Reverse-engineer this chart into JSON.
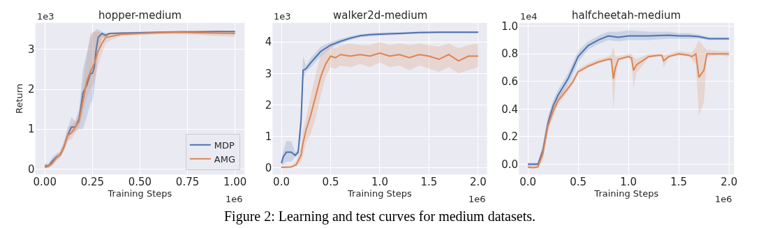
{
  "chart_data": [
    {
      "type": "line",
      "title": "hopper-medium",
      "xlabel": "Training Steps",
      "ylabel": "Return",
      "grid": true,
      "legend": "bottom right",
      "xlim": [
        -0.05,
        1.05
      ],
      "ylim": [
        -0.14,
        3.67
      ],
      "xticks": [
        {
          "value": 0,
          "label": "0.00"
        },
        0.25,
        {
          "value": 0.5,
          "label": "0.50"
        },
        0.75,
        {
          "value": 1,
          "label": "1.00"
        }
      ],
      "yticks": [
        0,
        1,
        2,
        3
      ],
      "annotations": [
        "1e3",
        "1e6",
        "Figure 2: Learning and test curves for medium datasets."
      ],
      "series": [
        {
          "name": "MDP",
          "color": "#4c72b0",
          "x": [
            0,
            0.02,
            0.04,
            0.06,
            0.08,
            0.1,
            0.12,
            0.14,
            0.16,
            0.18,
            0.2,
            0.22,
            0.24,
            0.25,
            0.26,
            0.27,
            0.28,
            0.3,
            0.32,
            0.34,
            0.4,
            0.5,
            0.6,
            0.7,
            0.8,
            0.9,
            1.0
          ],
          "values": [
            0.08,
            0.08,
            0.2,
            0.3,
            0.35,
            0.55,
            0.85,
            1.05,
            1.05,
            1.25,
            1.9,
            2.1,
            2.4,
            2.4,
            2.55,
            3.0,
            3.3,
            3.4,
            3.35,
            3.4,
            3.41,
            3.42,
            3.43,
            3.44,
            3.44,
            3.45,
            3.45
          ],
          "lower": [
            0.03,
            0.03,
            0.1,
            0.22,
            0.28,
            0.45,
            0.7,
            0.9,
            0.95,
            1.0,
            1.0,
            1.3,
            1.65,
            1.7,
            2.0,
            2.4,
            2.9,
            3.3,
            3.3,
            3.38,
            3.39,
            3.4,
            3.41,
            3.42,
            3.42,
            3.43,
            3.43
          ],
          "upper": [
            0.13,
            0.15,
            0.3,
            0.38,
            0.42,
            0.65,
            1.0,
            1.3,
            1.2,
            1.5,
            2.5,
            2.9,
            3.3,
            3.4,
            3.45,
            3.5,
            3.5,
            3.45,
            3.4,
            3.42,
            3.43,
            3.44,
            3.45,
            3.46,
            3.46,
            3.47,
            3.47
          ]
        },
        {
          "name": "AMG",
          "color": "#dd8452",
          "x": [
            0,
            0.02,
            0.04,
            0.06,
            0.08,
            0.1,
            0.12,
            0.14,
            0.16,
            0.18,
            0.2,
            0.22,
            0.24,
            0.26,
            0.28,
            0.3,
            0.32,
            0.35,
            0.4,
            0.5,
            0.6,
            0.7,
            0.8,
            0.9,
            1.0
          ],
          "values": [
            0.04,
            0.07,
            0.15,
            0.28,
            0.36,
            0.55,
            0.85,
            0.9,
            1.05,
            1.2,
            1.7,
            2.2,
            2.45,
            2.65,
            2.95,
            3.15,
            3.3,
            3.33,
            3.38,
            3.4,
            3.42,
            3.43,
            3.42,
            3.41,
            3.4
          ],
          "lower": [
            0.0,
            0.03,
            0.08,
            0.2,
            0.28,
            0.45,
            0.7,
            0.75,
            0.9,
            1.05,
            1.4,
            1.8,
            2.0,
            2.2,
            2.6,
            2.9,
            3.15,
            3.25,
            3.33,
            3.36,
            3.38,
            3.38,
            3.36,
            3.34,
            3.32
          ],
          "upper": [
            0.08,
            0.12,
            0.22,
            0.36,
            0.45,
            0.7,
            1.05,
            1.1,
            1.2,
            1.4,
            2.1,
            2.8,
            3.4,
            3.45,
            3.45,
            3.4,
            3.42,
            3.42,
            3.43,
            3.45,
            3.46,
            3.47,
            3.48,
            3.48,
            3.47
          ]
        }
      ]
    },
    {
      "type": "line",
      "title": "walker2d-medium",
      "xlabel": "Training Steps",
      "grid": true,
      "xlim": [
        -0.09,
        2.09
      ],
      "ylim": [
        -0.21,
        4.61
      ],
      "xticks": [
        {
          "value": 0,
          "label": "0.0"
        },
        0.5,
        {
          "value": 1,
          "label": "1.0"
        },
        1.5,
        {
          "value": 2,
          "label": "2.0"
        }
      ],
      "yticks": [
        0,
        1,
        2,
        3,
        4
      ],
      "annotations": [
        "1e3",
        "1e6"
      ],
      "series": [
        {
          "color": "#4c72b0",
          "x": [
            0,
            0.02,
            0.05,
            0.1,
            0.14,
            0.17,
            0.2,
            0.22,
            0.25,
            0.3,
            0.4,
            0.5,
            0.6,
            0.7,
            0.8,
            0.9,
            1.0,
            1.2,
            1.4,
            1.6,
            1.8,
            2.0
          ],
          "values": [
            0.15,
            0.35,
            0.5,
            0.5,
            0.4,
            0.5,
            1.5,
            3.1,
            3.15,
            3.35,
            3.7,
            3.9,
            4.02,
            4.12,
            4.2,
            4.23,
            4.25,
            4.27,
            4.3,
            4.31,
            4.31,
            4.31
          ],
          "lower": [
            0.1,
            0.1,
            0.2,
            0.2,
            0.35,
            0.4,
            1.0,
            2.8,
            3.05,
            3.2,
            3.55,
            3.8,
            3.95,
            4.06,
            4.15,
            4.18,
            4.2,
            4.23,
            4.27,
            4.28,
            4.28,
            4.28
          ],
          "upper": [
            0.3,
            0.55,
            0.85,
            0.85,
            0.5,
            0.6,
            2.0,
            3.55,
            3.25,
            3.5,
            3.85,
            4.0,
            4.1,
            4.18,
            4.25,
            4.28,
            4.3,
            4.31,
            4.34,
            4.34,
            4.34,
            4.34
          ]
        },
        {
          "color": "#dd8452",
          "x": [
            0,
            0.1,
            0.15,
            0.2,
            0.22,
            0.25,
            0.3,
            0.35,
            0.4,
            0.45,
            0.5,
            0.55,
            0.6,
            0.7,
            0.8,
            0.9,
            1.0,
            1.1,
            1.2,
            1.3,
            1.4,
            1.5,
            1.6,
            1.7,
            1.8,
            1.9,
            2.0
          ],
          "values": [
            0.02,
            0.03,
            0.1,
            0.4,
            0.8,
            1.2,
            1.7,
            2.3,
            2.9,
            3.3,
            3.55,
            3.5,
            3.6,
            3.55,
            3.6,
            3.55,
            3.65,
            3.55,
            3.6,
            3.5,
            3.6,
            3.55,
            3.45,
            3.6,
            3.4,
            3.55,
            3.55
          ],
          "lower": [
            0.0,
            0.01,
            0.05,
            0.2,
            0.4,
            0.8,
            1.1,
            1.6,
            2.3,
            2.9,
            3.2,
            3.15,
            3.25,
            3.2,
            3.3,
            3.2,
            3.35,
            3.2,
            3.25,
            3.1,
            3.25,
            3.15,
            3.05,
            3.2,
            3.0,
            3.1,
            3.2
          ],
          "upper": [
            0.05,
            0.06,
            0.2,
            0.7,
            1.2,
            1.6,
            2.3,
            3.0,
            3.6,
            3.7,
            3.85,
            3.8,
            3.9,
            3.95,
            3.9,
            3.9,
            4.0,
            3.9,
            3.95,
            3.9,
            3.95,
            3.9,
            3.85,
            3.95,
            3.8,
            3.9,
            3.95
          ]
        }
      ]
    },
    {
      "type": "line",
      "title": "halfcheetah-medium",
      "xlabel": "Training Steps",
      "grid": true,
      "xlim": [
        -0.09,
        2.05
      ],
      "ylim": [
        -0.075,
        1.025
      ],
      "xticks": [
        {
          "value": 0,
          "label": "0.0"
        },
        0.5,
        {
          "value": 1,
          "label": "1.0"
        },
        1.5,
        {
          "value": 2,
          "label": "2.0"
        }
      ],
      "yticks": [
        {
          "value": 0,
          "label": "0.0"
        },
        0.2,
        0.4,
        0.6,
        0.8,
        {
          "value": 1,
          "label": "1.0"
        }
      ],
      "annotations": [
        "1e4",
        "1e6"
      ],
      "series": [
        {
          "color": "#4c72b0",
          "x": [
            0,
            0.1,
            0.15,
            0.2,
            0.25,
            0.3,
            0.4,
            0.45,
            0.5,
            0.6,
            0.7,
            0.8,
            0.9,
            1.0,
            1.2,
            1.4,
            1.5,
            1.6,
            1.7,
            1.8,
            2.0
          ],
          "values": [
            0,
            0,
            0.1,
            0.3,
            0.42,
            0.5,
            0.62,
            0.7,
            0.78,
            0.86,
            0.9,
            0.93,
            0.92,
            0.93,
            0.93,
            0.935,
            0.93,
            0.93,
            0.925,
            0.91,
            0.91
          ],
          "lower": [
            -0.01,
            -0.01,
            0.05,
            0.25,
            0.38,
            0.46,
            0.58,
            0.65,
            0.74,
            0.83,
            0.87,
            0.9,
            0.89,
            0.9,
            0.9,
            0.91,
            0.91,
            0.91,
            0.91,
            0.9,
            0.9
          ],
          "upper": [
            0.01,
            0.01,
            0.15,
            0.35,
            0.46,
            0.54,
            0.66,
            0.74,
            0.82,
            0.89,
            0.93,
            0.96,
            0.96,
            0.97,
            0.96,
            0.96,
            0.95,
            0.95,
            0.94,
            0.92,
            0.92
          ]
        },
        {
          "color": "#dd8452",
          "x": [
            0,
            0.05,
            0.1,
            0.15,
            0.2,
            0.25,
            0.3,
            0.4,
            0.45,
            0.5,
            0.6,
            0.7,
            0.8,
            0.83,
            0.85,
            0.87,
            0.9,
            1.0,
            1.03,
            1.05,
            1.08,
            1.2,
            1.3,
            1.33,
            1.35,
            1.4,
            1.5,
            1.6,
            1.63,
            1.67,
            1.7,
            1.75,
            1.78,
            1.9,
            2.0
          ],
          "values": [
            -0.02,
            -0.025,
            -0.02,
            0.08,
            0.28,
            0.38,
            0.46,
            0.55,
            0.6,
            0.67,
            0.71,
            0.74,
            0.76,
            0.76,
            0.62,
            0.7,
            0.76,
            0.78,
            0.77,
            0.68,
            0.72,
            0.78,
            0.79,
            0.79,
            0.75,
            0.78,
            0.8,
            0.79,
            0.78,
            0.8,
            0.63,
            0.68,
            0.8,
            0.8,
            0.8
          ],
          "lower": [
            -0.03,
            -0.03,
            -0.03,
            0.03,
            0.24,
            0.34,
            0.43,
            0.53,
            0.58,
            0.66,
            0.7,
            0.73,
            0.75,
            0.74,
            0.39,
            0.6,
            0.75,
            0.77,
            0.75,
            0.55,
            0.66,
            0.77,
            0.78,
            0.78,
            0.7,
            0.77,
            0.79,
            0.78,
            0.76,
            0.72,
            0.35,
            0.45,
            0.78,
            0.79,
            0.78
          ],
          "upper": [
            -0.01,
            -0.01,
            -0.01,
            0.13,
            0.32,
            0.42,
            0.5,
            0.58,
            0.63,
            0.69,
            0.73,
            0.76,
            0.78,
            0.8,
            0.85,
            0.78,
            0.78,
            0.8,
            0.8,
            0.78,
            0.76,
            0.8,
            0.8,
            0.8,
            0.79,
            0.8,
            0.82,
            0.81,
            0.81,
            0.85,
            0.9,
            0.85,
            0.83,
            0.82,
            0.82
          ]
        }
      ]
    }
  ]
}
